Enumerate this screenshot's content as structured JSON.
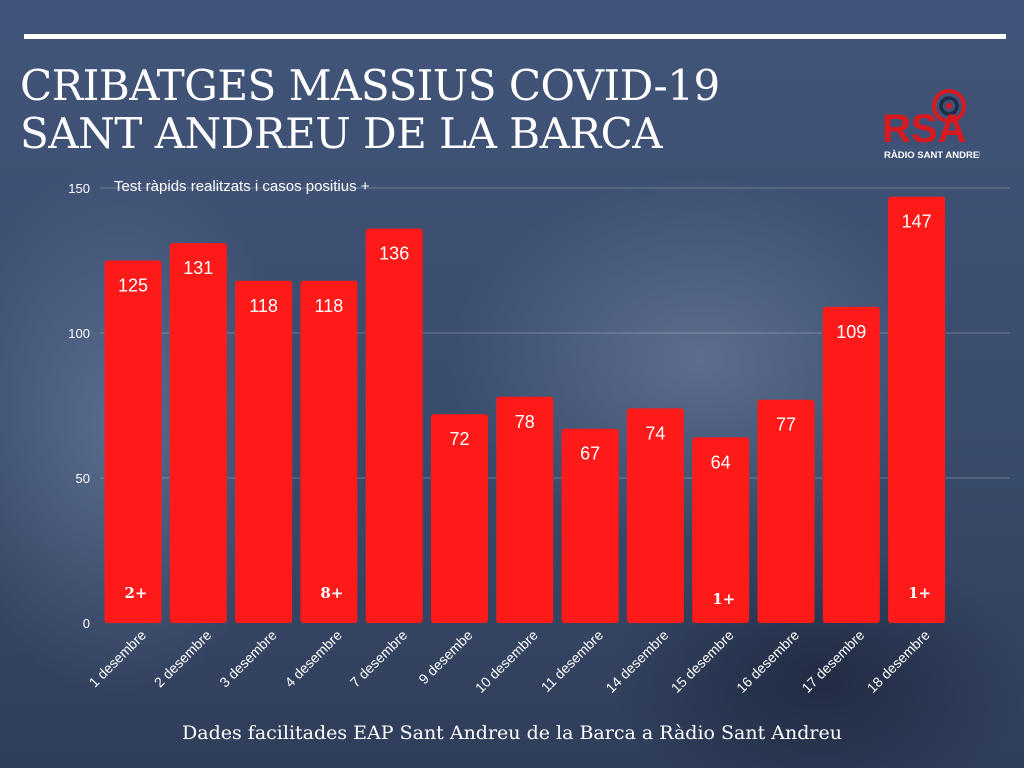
{
  "header": {
    "title_line1": "CRIBATGES MASSIUS COVID-19",
    "title_line2": "SANT ANDREU DE LA BARCA"
  },
  "logo": {
    "text": "RSA",
    "caption": "RÀDIO SANT ANDREU",
    "icon": "radio-signal-icon"
  },
  "footer": {
    "text": "Dades facilitades EAP Sant Andreu de la Barca a Ràdio Sant Andreu"
  },
  "colors": {
    "bar": "#ff1a1a",
    "grid": "rgba(255,255,255,0.25)",
    "text": "#ffffff"
  },
  "chart_data": {
    "type": "bar",
    "title": "Test ràpids realitzats i casos positius +",
    "categories": [
      "1 desembre",
      "2 desembre",
      "3 desembre",
      "4 desembre",
      "7 desembre",
      "9 desembe",
      "10 desembre",
      "11 desembre",
      "14 desembre",
      "15 desembre",
      "16 desembre",
      "17 desembre",
      "18 desembre"
    ],
    "values": [
      125,
      131,
      118,
      118,
      136,
      72,
      78,
      67,
      74,
      64,
      77,
      109,
      147
    ],
    "positives": [
      "2+",
      "",
      "",
      "8+",
      "",
      "",
      "",
      "",
      "",
      "1+",
      "",
      "",
      "1+"
    ],
    "yticks": [
      0,
      50,
      100,
      150
    ],
    "ylim": [
      0,
      150
    ],
    "grid": true,
    "legend": "none"
  }
}
